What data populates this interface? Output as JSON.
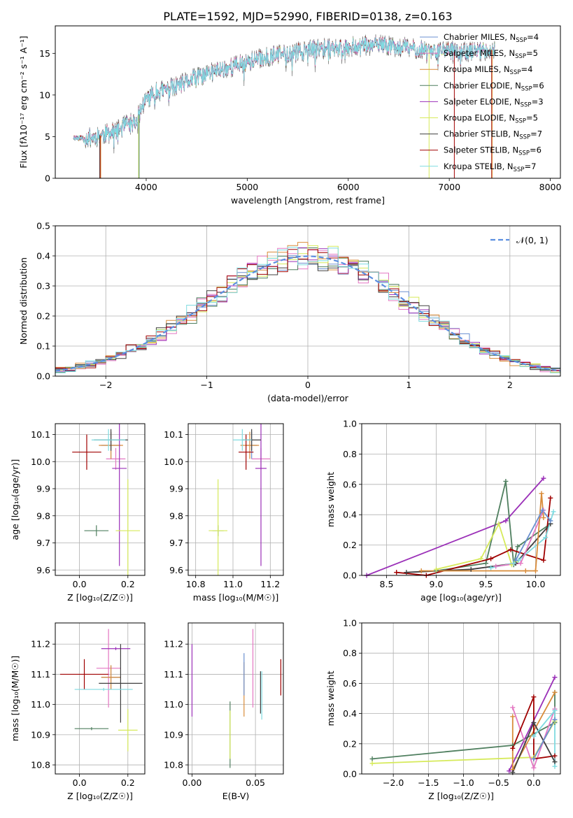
{
  "page": {
    "title": "PLATE=1592, MJD=52990, FIBERID=0138, z=0.163"
  },
  "colors": {
    "Chabrier MILES": "#6a8fd0",
    "Salpeter MILES": "#e377c2",
    "Kroupa MILES": "#d98c3a",
    "Chabrier ELODIE": "#4f7f5f",
    "Salpeter ELODIE": "#9b30b8",
    "Kroupa ELODIE": "#d6ea5a",
    "Chabrier STELIB": "#404040",
    "Salpeter STELIB": "#a00000",
    "Kroupa STELIB": "#7fdbe0",
    "data": "#808080",
    "normal": "#5b8ee0"
  },
  "chart_data": [
    {
      "id": "spectrum",
      "type": "line",
      "title": "PLATE=1592, MJD=52990, FIBERID=0138, z=0.163",
      "xlabel": "wavelength [Angstrom, rest frame]",
      "ylabel": "Flux [fλ10⁻¹⁷ erg cm⁻² s⁻¹ A⁻¹]",
      "xlim": [
        3100,
        8100
      ],
      "ylim": [
        0,
        18.3
      ],
      "xticks": [
        4000,
        5000,
        6000,
        7000,
        8000
      ],
      "yticks": [
        0,
        5,
        10,
        15
      ],
      "legend_position": "right",
      "continuum": [
        [
          3280,
          4.9
        ],
        [
          3400,
          4.8
        ],
        [
          3500,
          5.0
        ],
        [
          3600,
          5.3
        ],
        [
          3700,
          5.6
        ],
        [
          3800,
          6.4
        ],
        [
          3900,
          6.8
        ],
        [
          3950,
          8.3
        ],
        [
          4000,
          9.6
        ],
        [
          4100,
          10.3
        ],
        [
          4300,
          11.0
        ],
        [
          4500,
          12.1
        ],
        [
          4700,
          12.9
        ],
        [
          4900,
          13.6
        ],
        [
          5100,
          14.3
        ],
        [
          5300,
          14.8
        ],
        [
          5500,
          15.2
        ],
        [
          5700,
          15.5
        ],
        [
          5900,
          15.7
        ],
        [
          6100,
          15.9
        ],
        [
          6300,
          16.0
        ],
        [
          6500,
          15.8
        ],
        [
          6700,
          15.5
        ],
        [
          6900,
          15.3
        ],
        [
          7100,
          15.2
        ],
        [
          7300,
          15.3
        ],
        [
          7450,
          15.4
        ]
      ],
      "series": [
        {
          "name": "Chabrier MILES",
          "n_ssp": "4"
        },
        {
          "name": "Salpeter MILES",
          "n_ssp": "5"
        },
        {
          "name": "Kroupa MILES",
          "n_ssp": "4"
        },
        {
          "name": "Chabrier ELODIE",
          "n_ssp": "6"
        },
        {
          "name": "Salpeter ELODIE",
          "n_ssp": "3"
        },
        {
          "name": "Kroupa ELODIE",
          "n_ssp": "5"
        },
        {
          "name": "Chabrier STELIB",
          "n_ssp": "7"
        },
        {
          "name": "Salpeter STELIB",
          "n_ssp": "6"
        },
        {
          "name": "Kroupa STELIB",
          "n_ssp": "7"
        }
      ],
      "drops": [
        {
          "x": 3540,
          "color": "Chabrier STELIB"
        },
        {
          "x": 3545,
          "color": "Salpeter STELIB"
        },
        {
          "x": 3550,
          "color": "Kroupa MILES"
        },
        {
          "x": 3925,
          "color": "Kroupa ELODIE"
        },
        {
          "x": 3930,
          "color": "Chabrier ELODIE"
        },
        {
          "x": 6800,
          "color": "Kroupa ELODIE"
        },
        {
          "x": 7050,
          "color": "Salpeter STELIB"
        },
        {
          "x": 7420,
          "color": "Salpeter STELIB"
        },
        {
          "x": 7425,
          "color": "Kroupa MILES"
        }
      ]
    },
    {
      "id": "residuals",
      "type": "line",
      "xlabel": "(data-model)/error",
      "ylabel": "Normed distribution",
      "xlim": [
        -2.5,
        2.5
      ],
      "ylim": [
        0,
        0.5
      ],
      "xticks": [
        -2,
        -1,
        0,
        1,
        2
      ],
      "yticks": [
        0.0,
        0.1,
        0.2,
        0.3,
        0.4,
        0.5
      ],
      "bin_width": 0.1,
      "grid": true,
      "legend_label": "𝒩(0, 1)",
      "legend_position": "top-right"
    },
    {
      "id": "age_vs_Z",
      "type": "scatter",
      "xlabel": "Z [log₁₀(Z/Z☉)]",
      "ylabel": "age  [log₁₀(age/yr)]",
      "xlim": [
        -0.1,
        0.27
      ],
      "ylim": [
        9.58,
        10.14
      ],
      "xticks": [
        0.0,
        0.2
      ],
      "yticks": [
        9.6,
        9.7,
        9.8,
        9.9,
        10.0,
        10.1
      ],
      "points": [
        {
          "s": "Chabrier MILES",
          "x": 0.13,
          "y": 10.06,
          "ex": 0.04,
          "ey": 0.05
        },
        {
          "s": "Salpeter MILES",
          "x": 0.15,
          "y": 10.01,
          "ex": 0.04,
          "ey": 0.04
        },
        {
          "s": "Kroupa MILES",
          "x": 0.13,
          "y": 10.06,
          "ex": 0.05,
          "ey": 0.05
        },
        {
          "s": "Chabrier ELODIE",
          "x": 0.07,
          "y": 9.745,
          "ex": 0.05,
          "ey": 0.02
        },
        {
          "s": "Salpeter ELODIE",
          "x": 0.165,
          "y": 9.975,
          "ex": 0.03,
          "ey": 0.36
        },
        {
          "s": "Kroupa ELODIE",
          "x": 0.2,
          "y": 9.745,
          "ex": 0.05,
          "ey": 0.19
        },
        {
          "s": "Chabrier STELIB",
          "x": 0.13,
          "y": 10.08,
          "ex": 0.07,
          "ey": 0.04
        },
        {
          "s": "Salpeter STELIB",
          "x": 0.03,
          "y": 10.035,
          "ex": 0.06,
          "ey": 0.065
        },
        {
          "s": "Kroupa STELIB",
          "x": 0.12,
          "y": 10.08,
          "ex": 0.07,
          "ey": 0.04
        }
      ]
    },
    {
      "id": "age_vs_mass",
      "type": "scatter",
      "xlabel": "mass [log₁₀(M/M☉)]",
      "ylabel": "",
      "xlim": [
        10.76,
        11.27
      ],
      "ylim": [
        9.58,
        10.14
      ],
      "xticks": [
        10.8,
        11.0,
        11.2
      ],
      "yticks": [
        9.6,
        9.7,
        9.8,
        9.9,
        10.0,
        10.1
      ],
      "points": [
        {
          "s": "Chabrier MILES",
          "x": 11.1,
          "y": 10.06,
          "ex": 0.03,
          "ey": 0.05
        },
        {
          "s": "Salpeter MILES",
          "x": 11.15,
          "y": 10.01,
          "ex": 0.05,
          "ey": 0.04
        },
        {
          "s": "Kroupa MILES",
          "x": 11.09,
          "y": 10.06,
          "ex": 0.05,
          "ey": 0.05
        },
        {
          "s": "Chabrier ELODIE",
          "x": 10.92,
          "y": 9.745,
          "ex": 0.03,
          "ey": 0.02
        },
        {
          "s": "Salpeter ELODIE",
          "x": 11.15,
          "y": 9.975,
          "ex": 0.03,
          "ey": 0.36
        },
        {
          "s": "Kroupa ELODIE",
          "x": 10.92,
          "y": 9.745,
          "ex": 0.05,
          "ey": 0.19
        },
        {
          "s": "Chabrier STELIB",
          "x": 11.1,
          "y": 10.08,
          "ex": 0.05,
          "ey": 0.04
        },
        {
          "s": "Salpeter STELIB",
          "x": 11.07,
          "y": 10.035,
          "ex": 0.04,
          "ey": 0.065
        },
        {
          "s": "Kroupa STELIB",
          "x": 11.05,
          "y": 10.08,
          "ex": 0.05,
          "ey": 0.04
        }
      ]
    },
    {
      "id": "weight_vs_age",
      "type": "line",
      "xlabel": "age  [log₁₀(age/yr)]",
      "ylabel": "mass weight",
      "xlim": [
        8.25,
        10.25
      ],
      "ylim": [
        0,
        1.0
      ],
      "xticks": [
        8.5,
        9.0,
        9.5,
        10.0
      ],
      "yticks": [
        0.0,
        0.2,
        0.4,
        0.6,
        0.8,
        1.0
      ],
      "series": [
        {
          "s": "Salpeter ELODIE",
          "points": [
            [
              8.3,
              0.0
            ],
            [
              9.7,
              0.36
            ],
            [
              10.08,
              0.64
            ]
          ]
        },
        {
          "s": "Chabrier ELODIE",
          "points": [
            [
              9.0,
              0.03
            ],
            [
              9.5,
              0.08
            ],
            [
              9.7,
              0.62
            ],
            [
              9.78,
              0.07
            ],
            [
              9.82,
              0.19
            ],
            [
              10.15,
              0.34
            ]
          ]
        },
        {
          "s": "Kroupa ELODIE",
          "points": [
            [
              9.0,
              0.04
            ],
            [
              9.45,
              0.11
            ],
            [
              9.63,
              0.34
            ],
            [
              9.76,
              0.07
            ],
            [
              9.8,
              0.09
            ]
          ]
        },
        {
          "s": "Salpeter STELIB",
          "points": [
            [
              8.6,
              0.02
            ],
            [
              8.9,
              0.0
            ],
            [
              9.55,
              0.11
            ],
            [
              9.75,
              0.17
            ],
            [
              10.08,
              0.1
            ],
            [
              10.15,
              0.51
            ]
          ]
        },
        {
          "s": "Chabrier STELIB",
          "points": [
            [
              8.7,
              0.02
            ],
            [
              9.35,
              0.04
            ],
            [
              9.8,
              0.08
            ],
            [
              10.15,
              0.34
            ]
          ]
        },
        {
          "s": "Kroupa STELIB",
          "points": [
            [
              9.55,
              0.05
            ],
            [
              9.78,
              0.08
            ],
            [
              9.83,
              0.1
            ],
            [
              10.1,
              0.25
            ],
            [
              10.18,
              0.42
            ]
          ]
        },
        {
          "s": "Salpeter MILES",
          "points": [
            [
              9.6,
              0.06
            ],
            [
              9.85,
              0.08
            ],
            [
              10.08,
              0.43
            ]
          ]
        },
        {
          "s": "Kroupa MILES",
          "points": [
            [
              8.85,
              0.03
            ],
            [
              9.9,
              0.03
            ],
            [
              10.0,
              0.03
            ],
            [
              10.06,
              0.54
            ],
            [
              10.08,
              0.38
            ]
          ]
        },
        {
          "s": "Chabrier MILES",
          "points": [
            [
              9.8,
              0.1
            ],
            [
              10.07,
              0.43
            ],
            [
              10.15,
              0.36
            ]
          ]
        }
      ]
    },
    {
      "id": "mass_vs_Z",
      "type": "scatter",
      "xlabel": "Z [log₁₀(Z/Z☉)]",
      "ylabel": "mass [log₁₀(M/M☉)]",
      "xlim": [
        -0.1,
        0.27
      ],
      "ylim": [
        10.77,
        11.27
      ],
      "xticks": [
        0.0,
        0.2
      ],
      "yticks": [
        10.8,
        10.9,
        11.0,
        11.1,
        11.2
      ],
      "points": [
        {
          "s": "Chabrier MILES",
          "x": 0.13,
          "y": 11.09,
          "ex": 0.04,
          "ey": 0.04
        },
        {
          "s": "Salpeter MILES",
          "x": 0.12,
          "y": 11.12,
          "ex": 0.05,
          "ey": 0.13
        },
        {
          "s": "Kroupa MILES",
          "x": 0.13,
          "y": 11.09,
          "ex": 0.04,
          "ey": 0.04
        },
        {
          "s": "Chabrier ELODIE",
          "x": 0.05,
          "y": 10.92,
          "ex": 0.07,
          "ey": 0.005
        },
        {
          "s": "Salpeter ELODIE",
          "x": 0.15,
          "y": 11.185,
          "ex": 0.06,
          "ey": 0.005
        },
        {
          "s": "Kroupa ELODIE",
          "x": 0.2,
          "y": 10.915,
          "ex": 0.04,
          "ey": 0.07
        },
        {
          "s": "Chabrier STELIB",
          "x": 0.17,
          "y": 11.07,
          "ex": 0.09,
          "ey": 0.13
        },
        {
          "s": "Salpeter STELIB",
          "x": 0.02,
          "y": 11.1,
          "ex": 0.1,
          "ey": 0.05
        },
        {
          "s": "Kroupa STELIB",
          "x": 0.1,
          "y": 11.05,
          "ex": 0.12,
          "ey": 0.005
        }
      ]
    },
    {
      "id": "mass_vs_EBV",
      "type": "scatter",
      "xlabel": "E(B-V)",
      "ylabel": "",
      "xlim": [
        -0.003,
        0.072
      ],
      "ylim": [
        10.77,
        11.27
      ],
      "xticks": [
        0.0,
        0.05
      ],
      "yticks": [
        10.8,
        10.9,
        11.0,
        11.1,
        11.2
      ],
      "points": [
        {
          "s": "Salpeter ELODIE",
          "x": 0.0,
          "y": 11.08,
          "ex": 0,
          "ey": 0.12
        },
        {
          "s": "Chabrier ELODIE",
          "x": 0.03,
          "y": 10.9,
          "ex": 0,
          "ey": 0.11
        },
        {
          "s": "Kroupa ELODIE",
          "x": 0.03,
          "y": 10.9,
          "ex": 0,
          "ey": 0.08
        },
        {
          "s": "Kroupa MILES",
          "x": 0.041,
          "y": 11.05,
          "ex": 0,
          "ey": 0.09
        },
        {
          "s": "Chabrier MILES",
          "x": 0.041,
          "y": 11.1,
          "ex": 0,
          "ey": 0.07
        },
        {
          "s": "Salpeter MILES",
          "x": 0.048,
          "y": 11.12,
          "ex": 0,
          "ey": 0.13
        },
        {
          "s": "Chabrier STELIB",
          "x": 0.054,
          "y": 11.04,
          "ex": 0,
          "ey": 0.07
        },
        {
          "s": "Kroupa STELIB",
          "x": 0.055,
          "y": 11.03,
          "ex": 0,
          "ey": 0.08
        },
        {
          "s": "Salpeter STELIB",
          "x": 0.07,
          "y": 11.09,
          "ex": 0,
          "ey": 0.06
        }
      ]
    },
    {
      "id": "weight_vs_Z",
      "type": "line",
      "xlabel": "Z [log₁₀(Z/Z☉)]",
      "ylabel": "mass weight",
      "xlim": [
        -2.45,
        0.38
      ],
      "ylim": [
        0,
        1.0
      ],
      "xticks": [
        -2.0,
        -1.5,
        -1.0,
        -0.5,
        0.0
      ],
      "yticks": [
        0.0,
        0.2,
        0.4,
        0.6,
        0.8,
        1.0
      ],
      "series": [
        {
          "s": "Chabrier ELODIE",
          "points": [
            [
              -2.3,
              0.1
            ],
            [
              -0.3,
              0.19
            ],
            [
              0.3,
              0.34
            ],
            [
              0.3,
              0.54
            ]
          ]
        },
        {
          "s": "Kroupa ELODIE",
          "points": [
            [
              -2.3,
              0.07
            ],
            [
              0.0,
              0.11
            ],
            [
              0.3,
              0.35
            ]
          ]
        },
        {
          "s": "Salpeter ELODIE",
          "points": [
            [
              -0.35,
              0.02
            ],
            [
              0.3,
              0.64
            ]
          ]
        },
        {
          "s": "Salpeter MILES",
          "points": [
            [
              -0.3,
              0.44
            ],
            [
              0.0,
              0.04
            ],
            [
              0.3,
              0.43
            ]
          ]
        },
        {
          "s": "Kroupa MILES",
          "points": [
            [
              -0.3,
              0.38
            ],
            [
              -0.3,
              0.03
            ],
            [
              0.3,
              0.54
            ]
          ]
        },
        {
          "s": "Salpeter STELIB",
          "points": [
            [
              -0.3,
              0.17
            ],
            [
              0.0,
              0.51
            ],
            [
              0.0,
              0.1
            ],
            [
              0.3,
              0.12
            ]
          ]
        },
        {
          "s": "Chabrier STELIB",
          "points": [
            [
              -0.3,
              0.01
            ],
            [
              0.0,
              0.34
            ],
            [
              0.3,
              0.08
            ]
          ]
        },
        {
          "s": "Kroupa STELIB",
          "points": [
            [
              0.0,
              0.25
            ],
            [
              0.3,
              0.42
            ],
            [
              0.3,
              0.05
            ]
          ]
        },
        {
          "s": "Chabrier MILES",
          "points": [
            [
              0.0,
              0.1
            ],
            [
              0.3,
              0.36
            ]
          ]
        }
      ]
    }
  ]
}
